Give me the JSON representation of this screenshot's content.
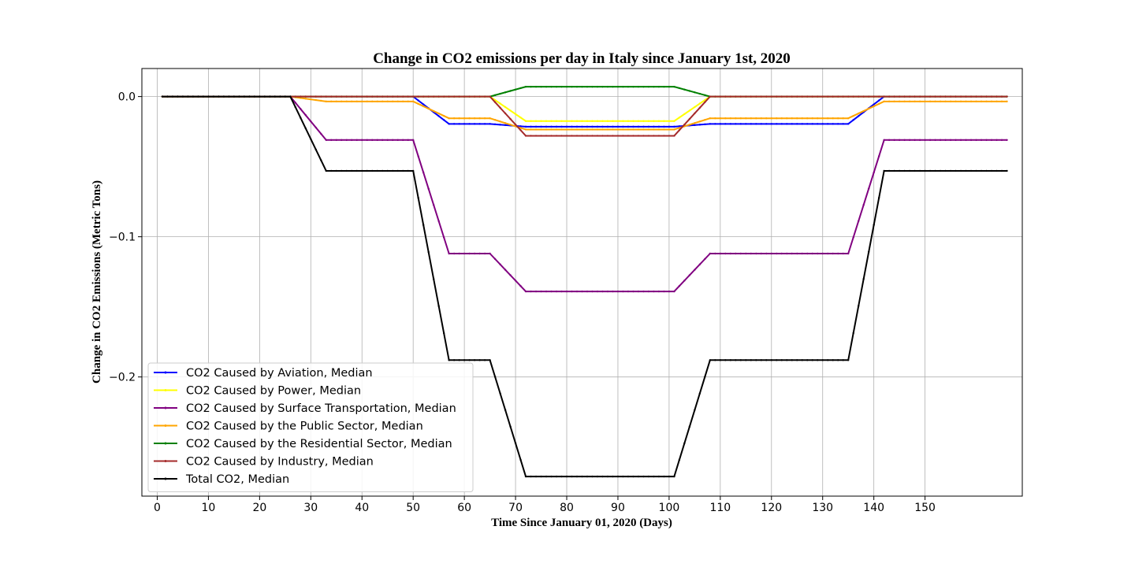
{
  "chart_data": {
    "type": "line",
    "title": "Change in CO2 emissions per day in Italy since January 1st, 2020",
    "xlabel": "Time Since January 01, 2020 (Days)",
    "ylabel": "Change in CO2 Emissions (Metric Tons)",
    "xlim": [
      -3,
      169
    ],
    "ylim": [
      -0.285,
      0.02
    ],
    "xticks": [
      0,
      10,
      20,
      30,
      40,
      50,
      60,
      70,
      80,
      90,
      100,
      110,
      120,
      130,
      140,
      150
    ],
    "yticks": [
      0.0,
      -0.1,
      -0.2
    ],
    "ytick_labels": [
      "0.0",
      "−0.1",
      "−0.2"
    ],
    "grid": true,
    "legend_position": "lower-left",
    "series": [
      {
        "name": "CO2 Caused by Aviation, Median",
        "color": "#0000ff",
        "points": [
          [
            1,
            0
          ],
          [
            50,
            0
          ],
          [
            57,
            -0.0195
          ],
          [
            65,
            -0.0195
          ],
          [
            72,
            -0.0215
          ],
          [
            101,
            -0.0215
          ],
          [
            108,
            -0.0195
          ],
          [
            135,
            -0.0195
          ],
          [
            142,
            0
          ],
          [
            166,
            0
          ]
        ]
      },
      {
        "name": "CO2 Caused by Power, Median",
        "color": "#ffff00",
        "points": [
          [
            1,
            0
          ],
          [
            65,
            0
          ],
          [
            72,
            -0.0175
          ],
          [
            101,
            -0.0175
          ],
          [
            108,
            0
          ],
          [
            166,
            0
          ]
        ]
      },
      {
        "name": "CO2 Caused by Surface Transportation, Median",
        "color": "#800080",
        "points": [
          [
            1,
            0
          ],
          [
            26,
            0
          ],
          [
            33,
            -0.031
          ],
          [
            50,
            -0.031
          ],
          [
            57,
            -0.112
          ],
          [
            65,
            -0.112
          ],
          [
            72,
            -0.139
          ],
          [
            101,
            -0.139
          ],
          [
            108,
            -0.112
          ],
          [
            135,
            -0.112
          ],
          [
            142,
            -0.031
          ],
          [
            166,
            -0.031
          ]
        ]
      },
      {
        "name": "CO2 Caused by the Public Sector, Median",
        "color": "#ffa500",
        "points": [
          [
            1,
            0
          ],
          [
            26,
            0
          ],
          [
            33,
            -0.0035
          ],
          [
            50,
            -0.0035
          ],
          [
            57,
            -0.0155
          ],
          [
            65,
            -0.0155
          ],
          [
            72,
            -0.0235
          ],
          [
            101,
            -0.0235
          ],
          [
            108,
            -0.0155
          ],
          [
            135,
            -0.0155
          ],
          [
            142,
            -0.0035
          ],
          [
            166,
            -0.0035
          ]
        ]
      },
      {
        "name": "CO2 Caused by the Residential Sector, Median",
        "color": "#008000",
        "points": [
          [
            1,
            0
          ],
          [
            65,
            0
          ],
          [
            72,
            0.007
          ],
          [
            101,
            0.007
          ],
          [
            108,
            0
          ],
          [
            166,
            0
          ]
        ]
      },
      {
        "name": "CO2 Caused by Industry, Median",
        "color": "#a52a2a",
        "points": [
          [
            1,
            0
          ],
          [
            65,
            0
          ],
          [
            72,
            -0.028
          ],
          [
            101,
            -0.028
          ],
          [
            108,
            0
          ],
          [
            166,
            0
          ]
        ]
      },
      {
        "name": "Total CO2, Median",
        "color": "#000000",
        "points": [
          [
            1,
            0
          ],
          [
            26,
            0
          ],
          [
            33,
            -0.053
          ],
          [
            50,
            -0.053
          ],
          [
            57,
            -0.188
          ],
          [
            65,
            -0.188
          ],
          [
            72,
            -0.271
          ],
          [
            101,
            -0.271
          ],
          [
            108,
            -0.188
          ],
          [
            135,
            -0.188
          ],
          [
            142,
            -0.053
          ],
          [
            166,
            -0.053
          ]
        ]
      }
    ]
  }
}
